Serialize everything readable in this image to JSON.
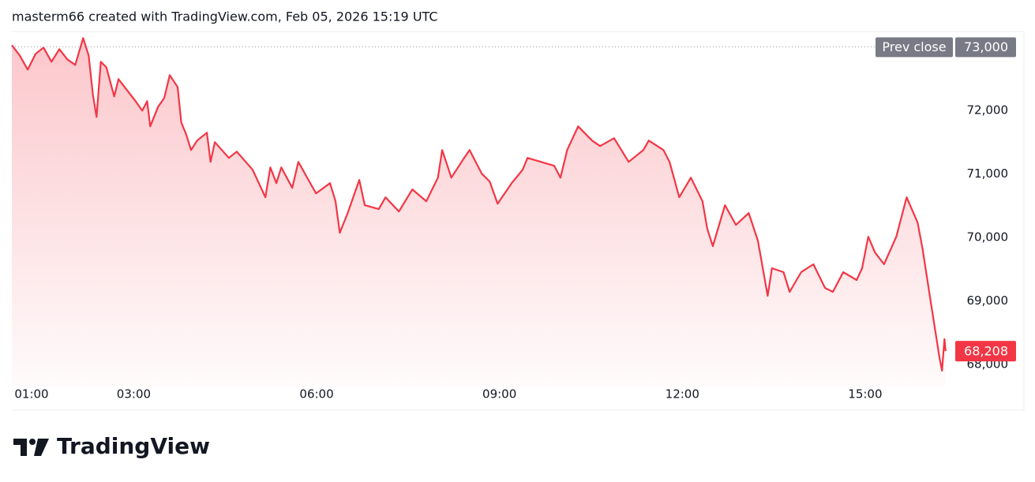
{
  "chart_data": {
    "type": "line",
    "title": "masterm66 created with TradingView.com, Feb 05, 2026 15:19 UTC",
    "watermark": "TradingView",
    "color": "#f23645",
    "x": [
      1.0,
      1.13,
      1.26,
      1.39,
      1.52,
      1.65,
      1.78,
      1.91,
      2.04,
      2.17,
      2.26,
      2.33,
      2.39,
      2.46,
      2.55,
      2.68,
      2.75,
      2.85,
      3.03,
      3.14,
      3.22,
      3.27,
      3.4,
      3.5,
      3.59,
      3.72,
      3.78,
      3.86,
      3.94,
      4.04,
      4.2,
      4.26,
      4.33,
      4.56,
      4.69,
      4.95,
      5.16,
      5.24,
      5.34,
      5.42,
      5.6,
      5.7,
      5.88,
      5.99,
      6.22,
      6.31,
      6.38,
      6.51,
      6.7,
      6.79,
      7.02,
      7.13,
      7.35,
      7.57,
      7.8,
      7.99,
      8.06,
      8.21,
      8.42,
      8.51,
      8.71,
      8.84,
      8.97,
      9.2,
      9.38,
      9.46,
      9.68,
      9.9,
      10.0,
      10.11,
      10.29,
      10.52,
      10.65,
      10.88,
      11.12,
      11.36,
      11.45,
      11.69,
      11.79,
      11.95,
      12.14,
      12.33,
      12.41,
      12.5,
      12.7,
      12.88,
      13.09,
      13.24,
      13.4,
      13.47,
      13.66,
      13.76,
      13.95,
      14.15,
      14.34,
      14.47,
      14.64,
      14.86,
      14.95,
      15.05,
      15.16,
      15.31,
      15.51,
      15.68,
      15.86,
      15.94,
      16.09,
      16.22,
      16.26,
      16.3,
      16.32
    ],
    "values": [
      73025,
      72863,
      72640,
      72888,
      72988,
      72764,
      72963,
      72801,
      72715,
      73137,
      72863,
      72243,
      71895,
      72764,
      72677,
      72218,
      72491,
      72367,
      72144,
      71995,
      72144,
      71747,
      72057,
      72193,
      72553,
      72367,
      71809,
      71622,
      71374,
      71523,
      71647,
      71188,
      71498,
      71250,
      71349,
      71064,
      70630,
      71101,
      70853,
      71101,
      70779,
      71188,
      70878,
      70692,
      70853,
      70568,
      70071,
      70382,
      70903,
      70506,
      70444,
      70630,
      70406,
      70754,
      70568,
      70940,
      71374,
      70940,
      71250,
      71374,
      71002,
      70878,
      70530,
      70853,
      71064,
      71250,
      71188,
      71126,
      70940,
      71374,
      71747,
      71523,
      71436,
      71560,
      71188,
      71374,
      71523,
      71374,
      71188,
      70630,
      70940,
      70568,
      70133,
      69860,
      70506,
      70195,
      70382,
      69947,
      69078,
      69513,
      69451,
      69141,
      69451,
      69575,
      69203,
      69141,
      69451,
      69327,
      69513,
      70009,
      69761,
      69575,
      70009,
      70630,
      70233,
      69823,
      68892,
      68100,
      67900,
      68396,
      68208
    ],
    "last_value_label": "68,208",
    "reference_line": {
      "name": "Prev close",
      "value": 73000,
      "label": "73,000"
    },
    "xlim": [
      1,
      16.4
    ],
    "ylim": [
      67650,
      73240
    ],
    "xticks": [
      {
        "value": 1,
        "label": "01:00"
      },
      {
        "value": 3,
        "label": "03:00"
      },
      {
        "value": 6,
        "label": "06:00"
      },
      {
        "value": 9,
        "label": "09:00"
      },
      {
        "value": 12,
        "label": "12:00"
      },
      {
        "value": 15,
        "label": "15:00"
      }
    ],
    "yticks": [
      {
        "value": 68000,
        "label": "68,000"
      },
      {
        "value": 69000,
        "label": "69,000"
      },
      {
        "value": 70000,
        "label": "70,000"
      },
      {
        "value": 71000,
        "label": "71,000"
      },
      {
        "value": 72000,
        "label": "72,000"
      }
    ],
    "grid": false
  }
}
